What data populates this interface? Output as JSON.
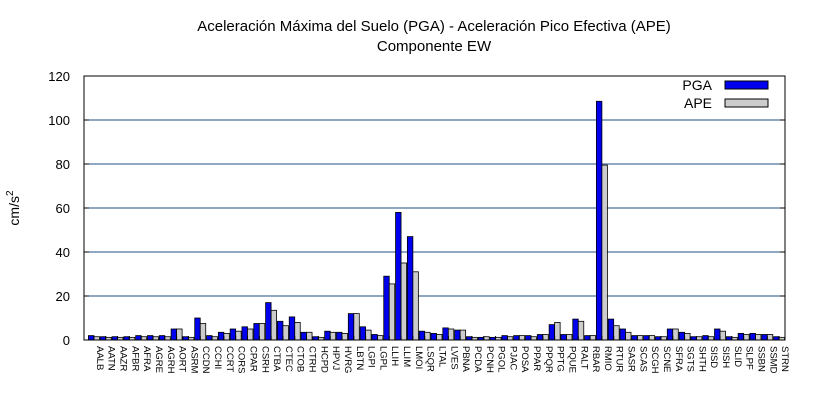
{
  "chart_data": {
    "type": "bar",
    "title": "Aceleración Máxima del Suelo (PGA) -  Aceleración Pico Efectiva (APE)",
    "subtitle": "Componente EW",
    "xlabel": "",
    "ylabel": "cm/s",
    "ylabel_superscript": "2",
    "ylim": [
      0,
      120
    ],
    "yticks": [
      0,
      20,
      40,
      60,
      80,
      100,
      120
    ],
    "grid": true,
    "legend_position": "top-right",
    "categories": [
      "AALB",
      "AATN",
      "AAZR",
      "AFBR",
      "AFRA",
      "AGRE",
      "AGRH",
      "AORT",
      "ASRM",
      "CCDN",
      "CCHI",
      "CCRT",
      "CORS",
      "CPAR",
      "CSRH",
      "CTBA",
      "CTEC",
      "CTOB",
      "CTRH",
      "HCPD",
      "HPVJ",
      "HVRG",
      "LBTN",
      "LGPI",
      "LGPL",
      "LLIH",
      "LLIM",
      "LMOI",
      "LSQR",
      "LTAL",
      "LVES",
      "PBNA",
      "PCDA",
      "PCNH",
      "PGOL",
      "PJAC",
      "POSA",
      "PPAR",
      "PPQR",
      "PPTG",
      "PQUE",
      "RALT",
      "RBAR",
      "RMIO",
      "RTUR",
      "SASR",
      "SCAS",
      "SCGH",
      "SCNE",
      "SFRA",
      "SGTS",
      "SHTH",
      "SISD",
      "SISH",
      "SLID",
      "SLPF",
      "SSBN",
      "SSMD",
      "STRN"
    ],
    "series": [
      {
        "name": "PGA",
        "color": "#0000ee",
        "values": [
          2,
          1.5,
          1.5,
          1.5,
          2,
          2,
          2,
          5,
          1.5,
          10,
          2,
          3.5,
          5,
          6,
          7.5,
          17,
          8.5,
          10.5,
          3.5,
          1.5,
          4,
          3.5,
          12,
          6,
          2.5,
          29,
          58,
          47,
          4,
          3,
          5.5,
          4.5,
          1.5,
          1.2,
          1.2,
          2,
          2,
          2,
          2.5,
          7,
          2.5,
          9.5,
          2,
          108.5,
          9.5,
          5,
          2,
          2,
          1.5,
          5,
          3.5,
          1.5,
          2,
          5,
          1.5,
          3,
          3,
          2.5,
          1.5
        ]
      },
      {
        "name": "APE",
        "color": "#cccccc",
        "values": [
          1.5,
          1.2,
          1.2,
          1.2,
          1.5,
          1.5,
          1.5,
          5,
          1.2,
          7.5,
          1.5,
          3,
          4,
          5,
          7.5,
          13.5,
          6.5,
          8,
          3.5,
          1.2,
          3.5,
          3,
          12,
          4.5,
          2,
          25.5,
          35,
          31,
          3.5,
          2.5,
          5,
          4.5,
          1.2,
          1.5,
          1.2,
          1.5,
          2,
          1.5,
          2.5,
          8,
          2.5,
          8.5,
          2,
          79.5,
          6.5,
          3.5,
          2,
          2,
          1.5,
          5,
          3,
          1.5,
          1.5,
          4,
          1.2,
          2.5,
          2.5,
          2.5,
          1.2
        ]
      }
    ]
  }
}
